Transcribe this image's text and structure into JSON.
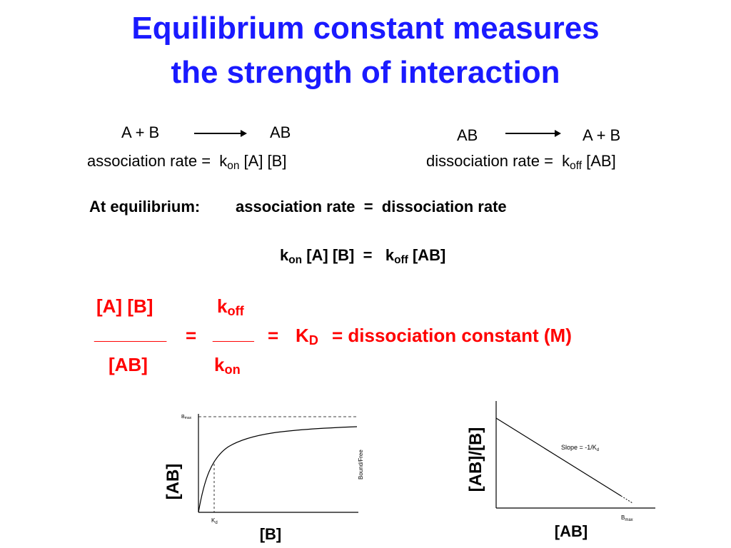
{
  "title": {
    "line1": "Equilibrium constant measures",
    "line2": "the strength of interaction"
  },
  "association": {
    "reactants": "A + B",
    "product": "AB",
    "rate_label": "association rate =",
    "k": "k",
    "k_sub": "on",
    "terms": "[A] [B]"
  },
  "dissociation": {
    "reactants": "AB",
    "product": "A + B",
    "rate_label": "dissociation rate =",
    "k": "k",
    "k_sub": "off",
    "terms": "[AB]"
  },
  "equilibrium": {
    "prefix": "At equilibrium:",
    "statement": "association rate  =  dissociation rate"
  },
  "equality": {
    "k_left": "k",
    "k_left_sub": "on",
    "left_terms": "[A] [B]",
    "equals": "=",
    "k_right": "k",
    "k_right_sub": "off",
    "right_terms": "[AB]"
  },
  "kd_equation": {
    "numerator_left": "[A] [B]",
    "denominator_left": "[AB]",
    "numerator_k": "k",
    "numerator_k_sub": "off",
    "denominator_k": "k",
    "denominator_k_sub": "on",
    "bar_left": "_______",
    "bar_right": "____",
    "eq1": "=",
    "eq2": "=",
    "kd": "K",
    "kd_sub": "D",
    "definition": "= dissociation constant (M)"
  },
  "graph_saturation": {
    "ylabel": "[AB]",
    "xlabel": "[B]",
    "bmax_label": "B",
    "bmax_sub": "max",
    "kd_label": "K",
    "kd_sub": "d",
    "curve_label": "Bound/Free"
  },
  "graph_scatchard": {
    "ylabel": "[AB]/[B]",
    "xlabel": "[AB]",
    "slope_label": "Slope = -1/K",
    "slope_sub": "d",
    "bmax_label": "B",
    "bmax_sub": "max"
  },
  "colors": {
    "title": "#1a1aff",
    "highlight": "#ff0000"
  }
}
